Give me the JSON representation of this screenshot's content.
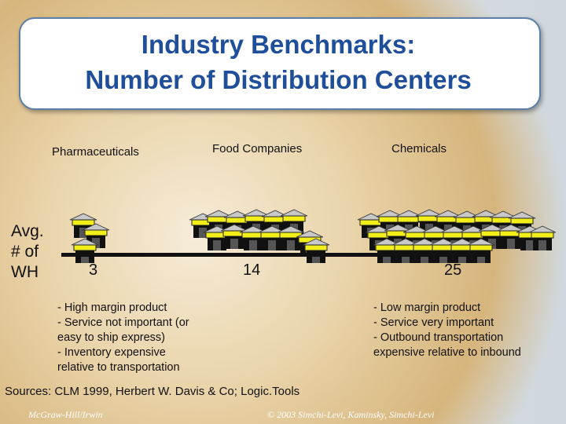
{
  "title_line1": "Industry Benchmarks:",
  "title_line2": "Number of Distribution Centers",
  "categories": [
    "Pharmaceuticals",
    "Food Companies",
    "Chemicals"
  ],
  "y_label": "Avg.\n# of\nWH",
  "values": [
    "3",
    "14",
    "25"
  ],
  "icon": "warehouse-icon",
  "colors": {
    "title": "#1f4f9a",
    "warehouse_roof": "#f2ee1a"
  },
  "notes_left": "- High margin product\n- Service not important (or\neasy to ship express)\n- Inventory expensive\nrelative to transportation",
  "notes_right": "- Low margin product\n- Service very important\n- Outbound transportation\nexpensive relative to inbound",
  "sources": "Sources: CLM 1999, Herbert W. Davis & Co; Logic.Tools",
  "footer_left": "McGraw-Hill/Irwin",
  "footer_right": "© 2003 Simchi-Levi, Kaminsky, Simchi-Levi"
}
